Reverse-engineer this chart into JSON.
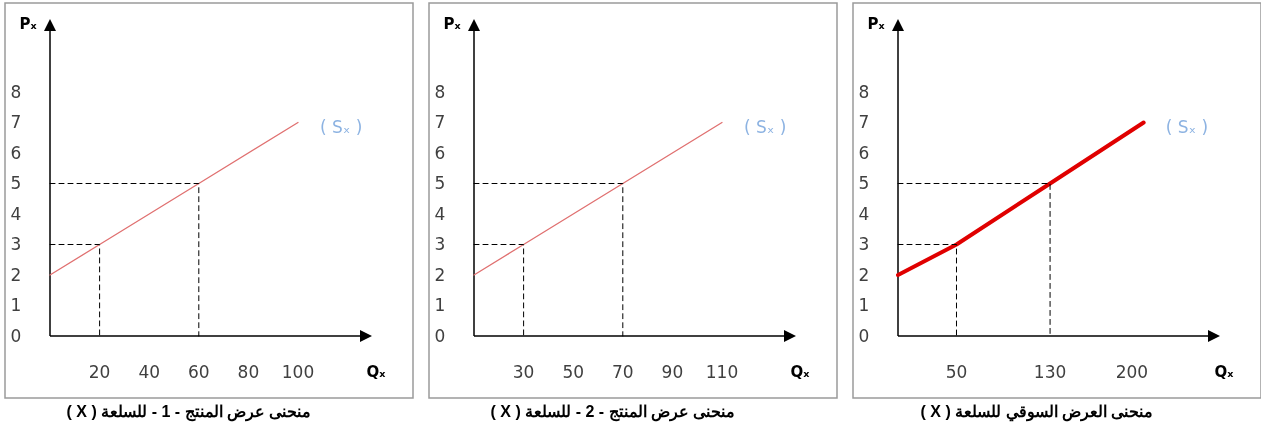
{
  "chart_data": [
    {
      "type": "line",
      "title": "منحنى عرض المنتج - 1 - للسلعة ( X )",
      "xlabel": "Qₓ",
      "ylabel": "Pₓ",
      "xlim": [
        0,
        125
      ],
      "xticks": [
        20,
        40,
        60,
        80,
        100
      ],
      "ylim": [
        0,
        10
      ],
      "yticks": [
        0,
        1,
        2,
        3,
        4,
        5,
        6,
        7,
        8
      ],
      "series": [
        {
          "name": "( Sₓ )",
          "color": "#e07070",
          "x": [
            0,
            20,
            60,
            100
          ],
          "values": [
            2,
            3,
            5,
            7
          ]
        },
        {
          "color": "#000000",
          "line_style": "dashed",
          "x": [
            0,
            20,
            20
          ],
          "values": [
            3,
            3,
            0
          ]
        },
        {
          "color": "#000000",
          "line_style": "dashed",
          "x": [
            0,
            60,
            60
          ],
          "values": [
            5,
            5,
            0
          ]
        }
      ]
    },
    {
      "type": "line",
      "title": "منحنى عرض المنتج - 2 - للسلعة ( X )",
      "xlabel": "Qₓ",
      "ylabel": "Pₓ",
      "xlim": [
        10,
        135
      ],
      "xticks": [
        30,
        50,
        70,
        90,
        110
      ],
      "ylim": [
        0,
        10
      ],
      "yticks": [
        0,
        1,
        2,
        3,
        4,
        5,
        6,
        7,
        8
      ],
      "series": [
        {
          "name": "( Sₓ )",
          "color": "#e07070",
          "x": [
            10,
            30,
            70,
            110
          ],
          "values": [
            2,
            3,
            5,
            7
          ]
        },
        {
          "color": "#000000",
          "line_style": "dashed",
          "x": [
            10,
            30,
            30
          ],
          "values": [
            3,
            3,
            0
          ]
        },
        {
          "color": "#000000",
          "line_style": "dashed",
          "x": [
            10,
            70,
            70
          ],
          "values": [
            5,
            5,
            0
          ]
        }
      ]
    },
    {
      "type": "line",
      "title": "منحنى العرض السوقي للسلعة ( X )",
      "xlabel": "Qₓ",
      "ylabel": "Pₓ",
      "xlim": [
        0,
        265
      ],
      "xticks": [
        50,
        130,
        200
      ],
      "ylim": [
        0,
        10
      ],
      "yticks": [
        0,
        1,
        2,
        3,
        4,
        5,
        6,
        7,
        8
      ],
      "series": [
        {
          "name": "( Sₓ )",
          "color": "#e00000",
          "x": [
            0,
            50,
            130,
            210
          ],
          "values": [
            2,
            3,
            5,
            7
          ]
        },
        {
          "color": "#000000",
          "line_style": "dashed",
          "x": [
            0,
            50,
            50
          ],
          "values": [
            3,
            3,
            0
          ]
        },
        {
          "color": "#000000",
          "line_style": "dashed",
          "x": [
            0,
            130,
            130
          ],
          "values": [
            5,
            5,
            0
          ]
        }
      ]
    }
  ]
}
